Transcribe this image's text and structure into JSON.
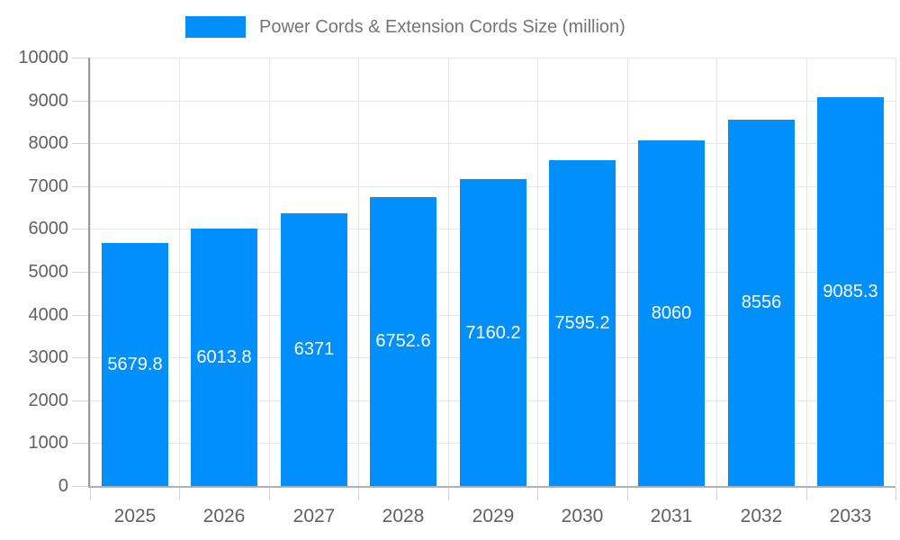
{
  "chart_data": {
    "type": "bar",
    "categories": [
      "2025",
      "2026",
      "2027",
      "2028",
      "2029",
      "2030",
      "2031",
      "2032",
      "2033"
    ],
    "series": [
      {
        "name": "Power Cords & Extension Cords Size (million)",
        "values": [
          5679.8,
          6013.8,
          6371,
          6752.6,
          7160.2,
          7595.2,
          8060,
          8556,
          9085.3
        ]
      }
    ],
    "ylim": [
      0,
      10000
    ],
    "yticks": [
      0,
      1000,
      2000,
      3000,
      4000,
      5000,
      6000,
      7000,
      8000,
      9000,
      10000
    ],
    "grid": true,
    "legend_position": "top",
    "bar_label_position": "center",
    "colors": {
      "bar": "#008FFB",
      "bar_label": "#FFFFFF",
      "grid_line": "#E6E6E6",
      "axis_line": "#999999",
      "baseline": "#B0B0B0",
      "tick": "#D4D4D4",
      "axis_text": "#616161",
      "legend_text": "#757575",
      "background": "#FFFFFF"
    }
  }
}
